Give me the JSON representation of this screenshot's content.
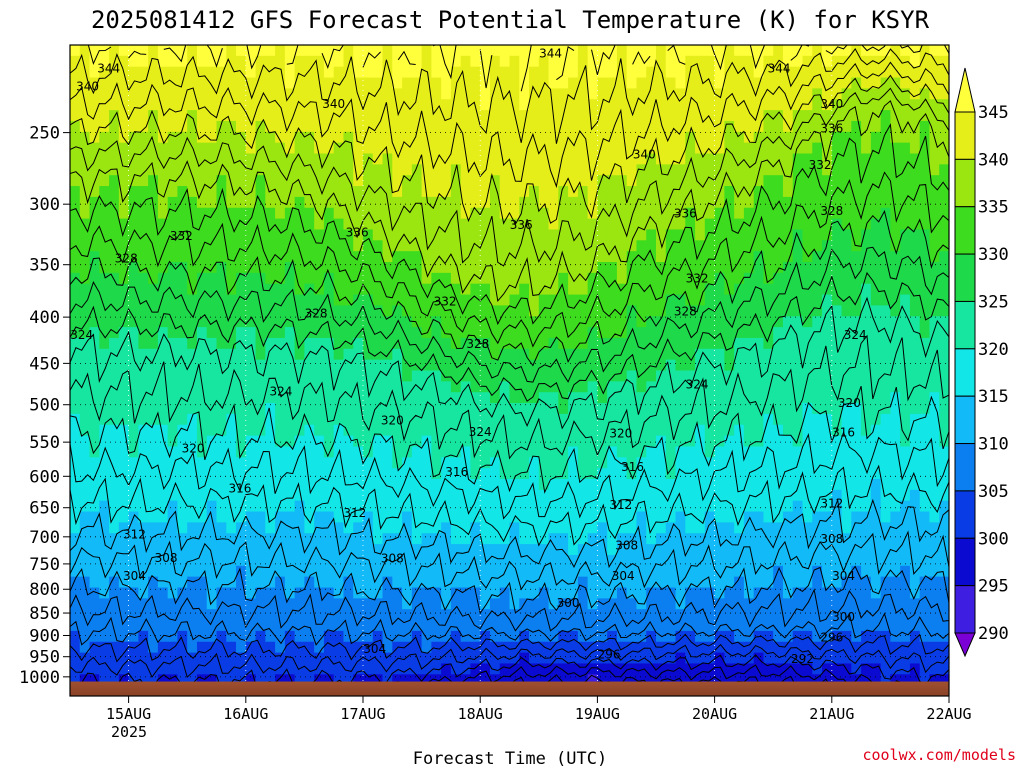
{
  "chart_data": {
    "type": "heatmap",
    "title": "2025081412 GFS Forecast Potential Temperature (K) for KSYR",
    "xlabel": "Forecast Time (UTC)",
    "ylabel": "",
    "x_ticks": [
      {
        "day": 15,
        "label": "15AUG"
      },
      {
        "day": 16,
        "label": "16AUG"
      },
      {
        "day": 17,
        "label": "17AUG"
      },
      {
        "day": 18,
        "label": "18AUG"
      },
      {
        "day": 19,
        "label": "19AUG"
      },
      {
        "day": 20,
        "label": "20AUG"
      },
      {
        "day": 21,
        "label": "21AUG"
      },
      {
        "day": 22,
        "label": "22AUG"
      }
    ],
    "x_sub_label": "2025",
    "xlim": [
      "2025-08-14 12Z",
      "2025-08-22 00Z"
    ],
    "y_scale": "log",
    "y_units": "hPa",
    "ylim": [
      1050,
      200
    ],
    "y_ticks": [
      250,
      300,
      350,
      400,
      450,
      500,
      550,
      600,
      650,
      700,
      750,
      800,
      850,
      900,
      950,
      1000
    ],
    "colorbar": {
      "levels": [
        290,
        295,
        300,
        305,
        310,
        315,
        320,
        325,
        330,
        335,
        340,
        345
      ],
      "labels": [
        "345",
        "340",
        "335",
        "330",
        "325",
        "320",
        "315",
        "310",
        "305",
        "300",
        "295",
        "290"
      ],
      "colors": [
        "#7a00d6",
        "#3e1ee0",
        "#0a0ad0",
        "#0a3ce6",
        "#0c7ff0",
        "#12baf7",
        "#12e6e6",
        "#16e6a0",
        "#1ed94a",
        "#3ddc1e",
        "#9be610",
        "#e6ee1a",
        "#ffff3c"
      ]
    },
    "contour_interval": 2,
    "contour_labels": [
      {
        "value": 344,
        "day": 14.83,
        "p": 212
      },
      {
        "value": 344,
        "day": 18.6,
        "p": 204
      },
      {
        "value": 344,
        "day": 20.55,
        "p": 212
      },
      {
        "value": 340,
        "day": 14.65,
        "p": 222
      },
      {
        "value": 340,
        "day": 16.75,
        "p": 232
      },
      {
        "value": 340,
        "day": 19.4,
        "p": 264
      },
      {
        "value": 340,
        "day": 21.0,
        "p": 232
      },
      {
        "value": 336,
        "day": 21.0,
        "p": 247
      },
      {
        "value": 336,
        "day": 16.95,
        "p": 322
      },
      {
        "value": 336,
        "day": 18.35,
        "p": 316
      },
      {
        "value": 336,
        "day": 19.75,
        "p": 307
      },
      {
        "value": 332,
        "day": 20.9,
        "p": 271
      },
      {
        "value": 332,
        "day": 15.45,
        "p": 325
      },
      {
        "value": 332,
        "day": 17.7,
        "p": 384
      },
      {
        "value": 332,
        "day": 19.85,
        "p": 362
      },
      {
        "value": 328,
        "day": 14.98,
        "p": 344
      },
      {
        "value": 328,
        "day": 16.6,
        "p": 396
      },
      {
        "value": 328,
        "day": 17.98,
        "p": 428
      },
      {
        "value": 328,
        "day": 19.75,
        "p": 394
      },
      {
        "value": 328,
        "day": 21.0,
        "p": 305
      },
      {
        "value": 324,
        "day": 14.6,
        "p": 418
      },
      {
        "value": 324,
        "day": 21.2,
        "p": 418
      },
      {
        "value": 324,
        "day": 16.3,
        "p": 483
      },
      {
        "value": 324,
        "day": 18.0,
        "p": 535
      },
      {
        "value": 324,
        "day": 19.85,
        "p": 474
      },
      {
        "value": 320,
        "day": 15.55,
        "p": 558
      },
      {
        "value": 320,
        "day": 17.25,
        "p": 520
      },
      {
        "value": 320,
        "day": 19.2,
        "p": 537
      },
      {
        "value": 320,
        "day": 21.15,
        "p": 497
      },
      {
        "value": 316,
        "day": 21.1,
        "p": 536
      },
      {
        "value": 316,
        "day": 15.95,
        "p": 618
      },
      {
        "value": 316,
        "day": 17.8,
        "p": 593
      },
      {
        "value": 316,
        "day": 19.3,
        "p": 585
      },
      {
        "value": 312,
        "day": 15.05,
        "p": 695
      },
      {
        "value": 312,
        "day": 16.93,
        "p": 658
      },
      {
        "value": 312,
        "day": 19.2,
        "p": 645
      },
      {
        "value": 312,
        "day": 21.0,
        "p": 642
      },
      {
        "value": 308,
        "day": 15.32,
        "p": 738
      },
      {
        "value": 308,
        "day": 17.25,
        "p": 739
      },
      {
        "value": 308,
        "day": 19.25,
        "p": 715
      },
      {
        "value": 308,
        "day": 21.0,
        "p": 703
      },
      {
        "value": 304,
        "day": 15.05,
        "p": 772
      },
      {
        "value": 304,
        "day": 19.22,
        "p": 772
      },
      {
        "value": 304,
        "day": 21.1,
        "p": 772
      },
      {
        "value": 304,
        "day": 17.1,
        "p": 930
      },
      {
        "value": 300,
        "day": 18.75,
        "p": 827
      },
      {
        "value": 300,
        "day": 21.1,
        "p": 858
      },
      {
        "value": 296,
        "day": 21.0,
        "p": 903
      },
      {
        "value": 296,
        "day": 19.1,
        "p": 944
      },
      {
        "value": 292,
        "day": 20.75,
        "p": 954
      }
    ]
  },
  "credit": "coolwx.com/models"
}
